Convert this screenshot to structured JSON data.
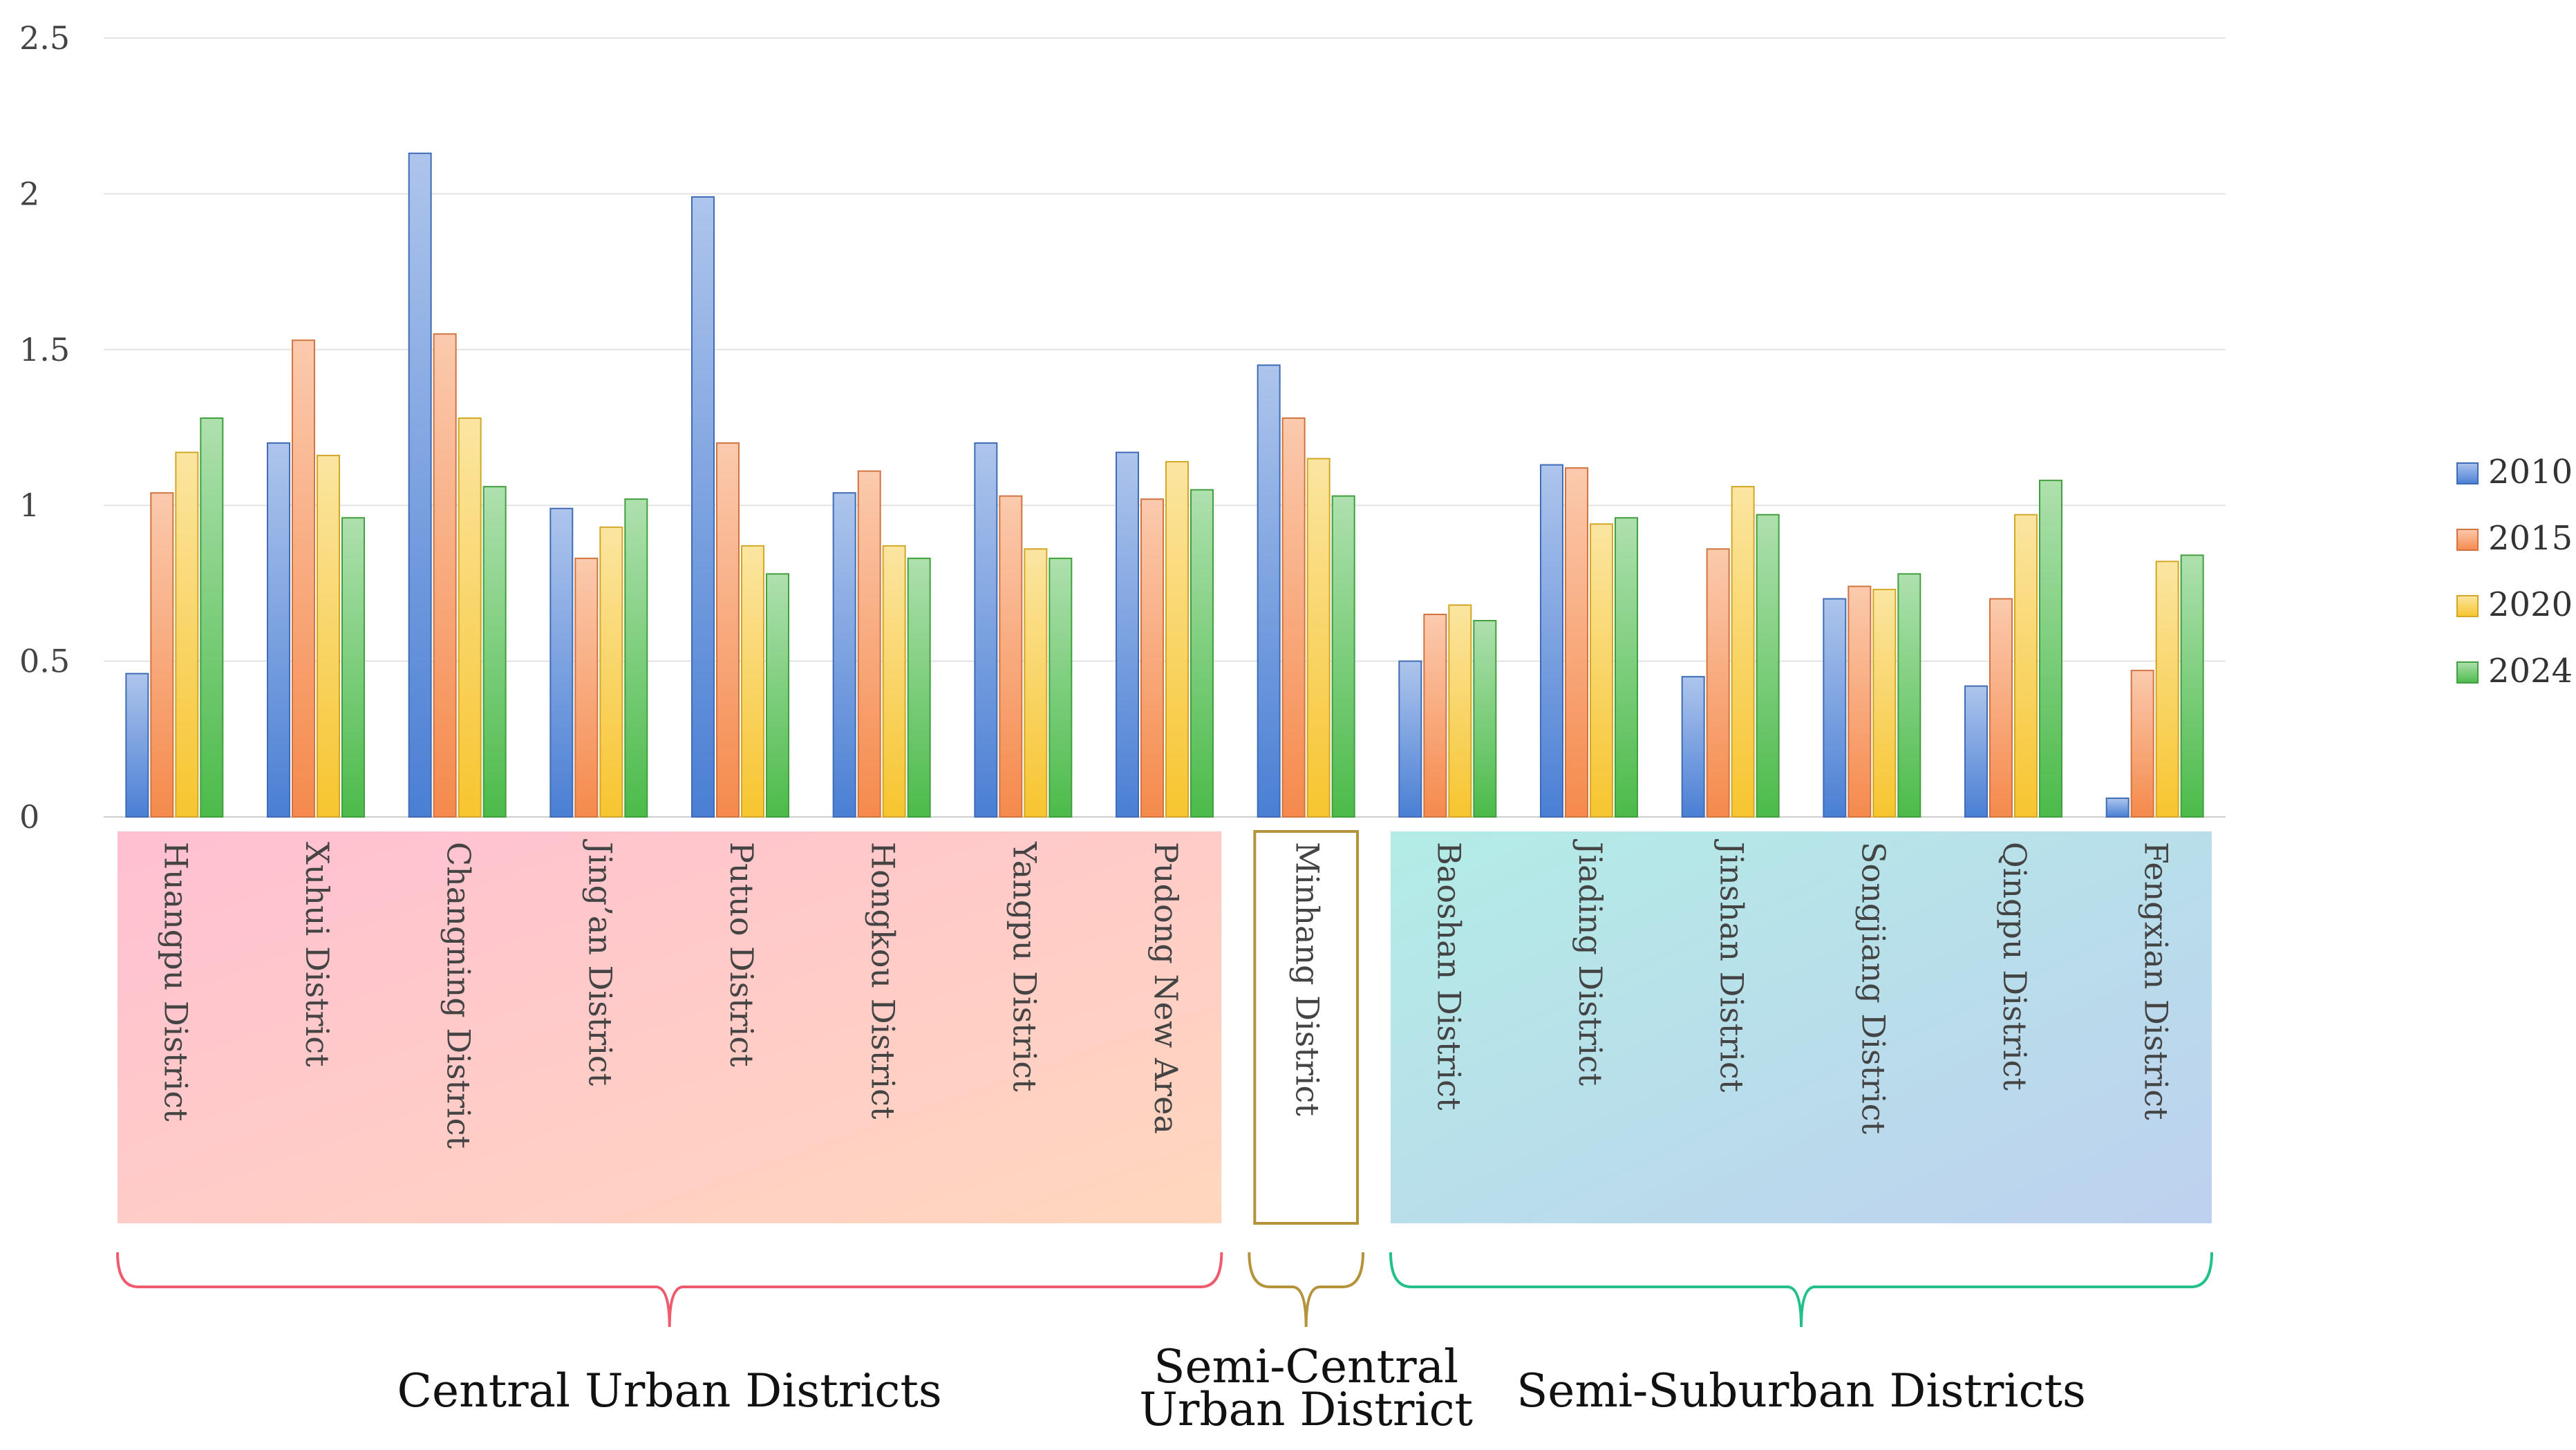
{
  "chart_data": {
    "type": "bar",
    "categories": [
      "Huangpu District",
      "Xuhui District",
      "Changning District",
      "Jing’an District",
      "Putuo District",
      "Hongkou District",
      "Yangpu District",
      "Pudong New Area",
      "Minhang District",
      "Baoshan District",
      "Jiading District",
      "Jinshan District",
      "Songjiang District",
      "Qingpu District",
      "Fengxian District"
    ],
    "series": [
      {
        "name": "2010",
        "color": "#4a7fd4",
        "values": [
          0.46,
          1.2,
          2.13,
          0.99,
          1.99,
          1.04,
          1.2,
          1.17,
          1.45,
          0.5,
          1.13,
          0.45,
          0.7,
          0.42,
          0.06
        ]
      },
      {
        "name": "2015",
        "color": "#f58a4c",
        "values": [
          1.04,
          1.53,
          1.55,
          0.83,
          1.2,
          1.11,
          1.03,
          1.02,
          1.28,
          0.65,
          1.12,
          0.86,
          0.74,
          0.7,
          0.47
        ]
      },
      {
        "name": "2020",
        "color": "#f7c52f",
        "values": [
          1.17,
          1.16,
          1.28,
          0.93,
          0.87,
          0.87,
          0.86,
          1.14,
          1.15,
          0.68,
          0.94,
          1.06,
          0.73,
          0.97,
          0.82
        ]
      },
      {
        "name": "2024",
        "color": "#4cbb4a",
        "values": [
          1.28,
          0.96,
          1.06,
          1.02,
          0.78,
          0.83,
          0.83,
          1.05,
          1.03,
          0.63,
          0.96,
          0.97,
          0.78,
          1.08,
          0.84
        ]
      }
    ],
    "y_ticks": [
      "0",
      "0.5",
      "1",
      "1.5",
      "2",
      "2.5"
    ],
    "ylim": [
      0,
      2.5
    ],
    "grid": true,
    "legend_position": "right",
    "groups": [
      {
        "label_lines": [
          "Central  Urban  Districts"
        ],
        "from": 0,
        "to": 7,
        "color": "#ef5b6c",
        "fill": "gradient-pink"
      },
      {
        "label_lines": [
          "Semi-Central",
          "Urban District"
        ],
        "from": 8,
        "to": 8,
        "color": "#b5923c",
        "fill": "none"
      },
      {
        "label_lines": [
          "Semi-Suburban  Districts"
        ],
        "from": 9,
        "to": 14,
        "color": "#22c08a",
        "fill": "gradient-blue"
      }
    ]
  }
}
